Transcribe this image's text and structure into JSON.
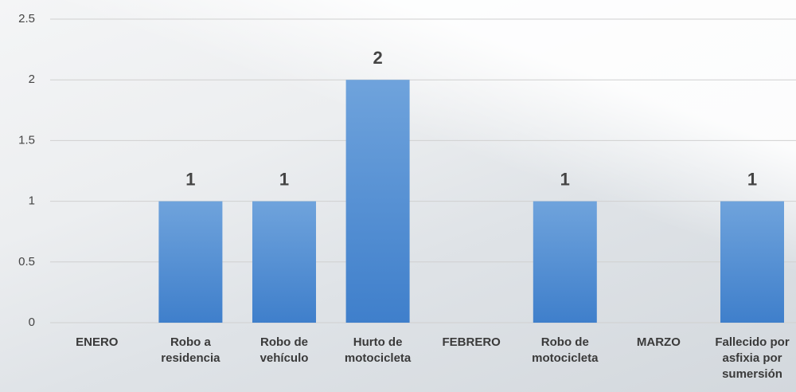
{
  "chart_data": {
    "type": "bar",
    "categories": [
      "ENERO",
      "Robo a residencia",
      "Robo de vehículo",
      "Hurto de motocicleta",
      "FEBRERO",
      "Robo de motocicleta",
      "MARZO",
      "Fallecido por asfixia por sumersión"
    ],
    "values": [
      null,
      1,
      1,
      2,
      null,
      1,
      null,
      1
    ],
    "color": "#4f8fd6",
    "ylim": [
      0,
      2.5
    ],
    "yticks": [
      0,
      0.5,
      1,
      1.5,
      2,
      2.5
    ],
    "grid": true
  }
}
